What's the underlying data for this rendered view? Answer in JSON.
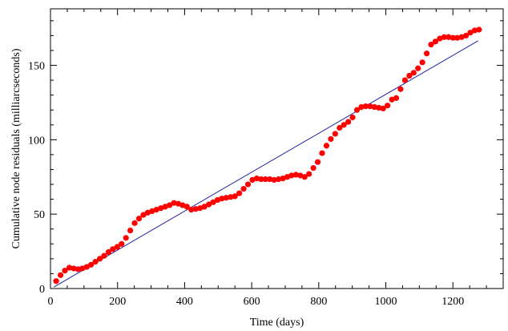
{
  "chart_data": {
    "type": "scatter",
    "xlabel": "Time (days)",
    "ylabel": "Cumulative node residuals (milliarcseconds)",
    "xlim": [
      0,
      1350
    ],
    "ylim": [
      0,
      188
    ],
    "x_ticks": [
      0,
      200,
      400,
      600,
      800,
      1000,
      1200
    ],
    "y_ticks": [
      0,
      50,
      100,
      150
    ],
    "grid": false,
    "colors": {
      "points": "#ff0000",
      "fit_line": "#2020a0",
      "axes": "#000000"
    },
    "series": [
      {
        "kind": "points",
        "x": [
          17,
          30,
          43,
          56,
          69,
          82,
          95,
          108,
          121,
          134,
          147,
          160,
          173,
          186,
          199,
          212,
          225,
          238,
          251,
          264,
          277,
          290,
          303,
          316,
          329,
          342,
          355,
          368,
          381,
          394,
          407,
          420,
          433,
          446,
          459,
          472,
          485,
          498,
          511,
          524,
          537,
          550,
          563,
          576,
          589,
          602,
          615,
          628,
          641,
          654,
          667,
          680,
          693,
          706,
          719,
          732,
          745,
          758,
          771,
          784,
          797,
          810,
          823,
          836,
          849,
          862,
          875,
          888,
          901,
          914,
          927,
          940,
          953,
          966,
          979,
          992,
          1005,
          1018,
          1031,
          1044,
          1057,
          1070,
          1083,
          1096,
          1109,
          1122,
          1135,
          1148,
          1161,
          1174,
          1187,
          1200,
          1213,
          1226,
          1239,
          1252,
          1265,
          1278
        ],
        "y": [
          5,
          9,
          12,
          14,
          13.5,
          13,
          13.5,
          14.5,
          16,
          18,
          20,
          22,
          24.5,
          26.5,
          28,
          30,
          34,
          39,
          44,
          47,
          49.5,
          51,
          52,
          53,
          54,
          55,
          56,
          57.5,
          57,
          56,
          55,
          53,
          53.5,
          54,
          55,
          56.5,
          58,
          59.5,
          60.5,
          61,
          61.5,
          62,
          64,
          67,
          70,
          73,
          74,
          73.5,
          73.5,
          73.5,
          73,
          73.5,
          74,
          75,
          76,
          76.5,
          76,
          75,
          77,
          81,
          85,
          91,
          96,
          100.5,
          104,
          108,
          110,
          112,
          115,
          120,
          122,
          122.5,
          122.5,
          122,
          121.5,
          121,
          123,
          127,
          128,
          134,
          140,
          143,
          145,
          148,
          152,
          158,
          164,
          166,
          168,
          169,
          169,
          168.5,
          168.5,
          169,
          170,
          172,
          173.5,
          174
        ]
      },
      {
        "kind": "line",
        "x": [
          10,
          1275
        ],
        "y": [
          1,
          166.5
        ]
      }
    ]
  }
}
